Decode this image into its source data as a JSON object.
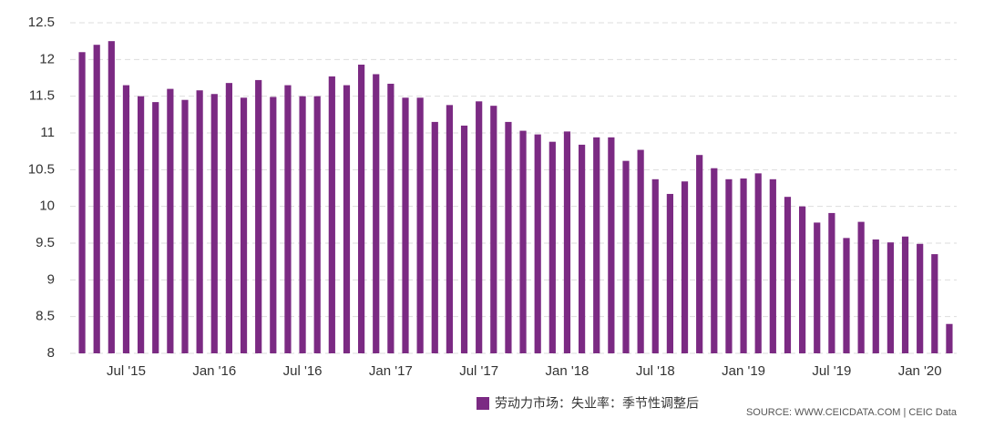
{
  "chart_data": {
    "type": "bar",
    "categories": [
      null,
      null,
      null,
      "Jul '15",
      null,
      null,
      null,
      null,
      null,
      "Jan '16",
      null,
      null,
      null,
      null,
      null,
      "Jul '16",
      null,
      null,
      null,
      null,
      null,
      "Jan '17",
      null,
      null,
      null,
      null,
      null,
      "Jul '17",
      null,
      null,
      null,
      null,
      null,
      "Jan '18",
      null,
      null,
      null,
      null,
      null,
      "Jul '18",
      null,
      null,
      null,
      null,
      null,
      "Jan '19",
      null,
      null,
      null,
      null,
      null,
      "Jul '19",
      null,
      null,
      null,
      null,
      null,
      "Jan '20",
      null,
      null
    ],
    "series": [
      {
        "name": "劳动力市场：失业率：季节性调整后",
        "color": "#7b2a83",
        "values": [
          12.1,
          12.2,
          12.25,
          11.65,
          11.5,
          11.42,
          11.6,
          11.45,
          11.58,
          11.53,
          11.68,
          11.48,
          11.72,
          11.49,
          11.65,
          11.5,
          11.5,
          11.77,
          11.65,
          11.93,
          11.8,
          11.67,
          11.48,
          11.48,
          11.15,
          11.38,
          11.1,
          11.43,
          11.37,
          11.15,
          11.03,
          10.98,
          10.88,
          11.02,
          10.84,
          10.94,
          10.94,
          10.62,
          10.77,
          10.37,
          10.17,
          10.34,
          10.7,
          10.52,
          10.37,
          10.38,
          10.45,
          10.37,
          10.13,
          10.0,
          9.78,
          9.91,
          9.57,
          9.79,
          9.55,
          9.51,
          9.59,
          9.49,
          9.35,
          8.4
        ]
      }
    ],
    "ylim": [
      8,
      12.5
    ],
    "yticks": [
      8,
      8.5,
      9,
      9.5,
      10,
      10.5,
      11,
      11.5,
      12,
      12.5
    ],
    "grid": true,
    "source": "SOURCE: WWW.CEICDATA.COM | CEIC Data"
  }
}
